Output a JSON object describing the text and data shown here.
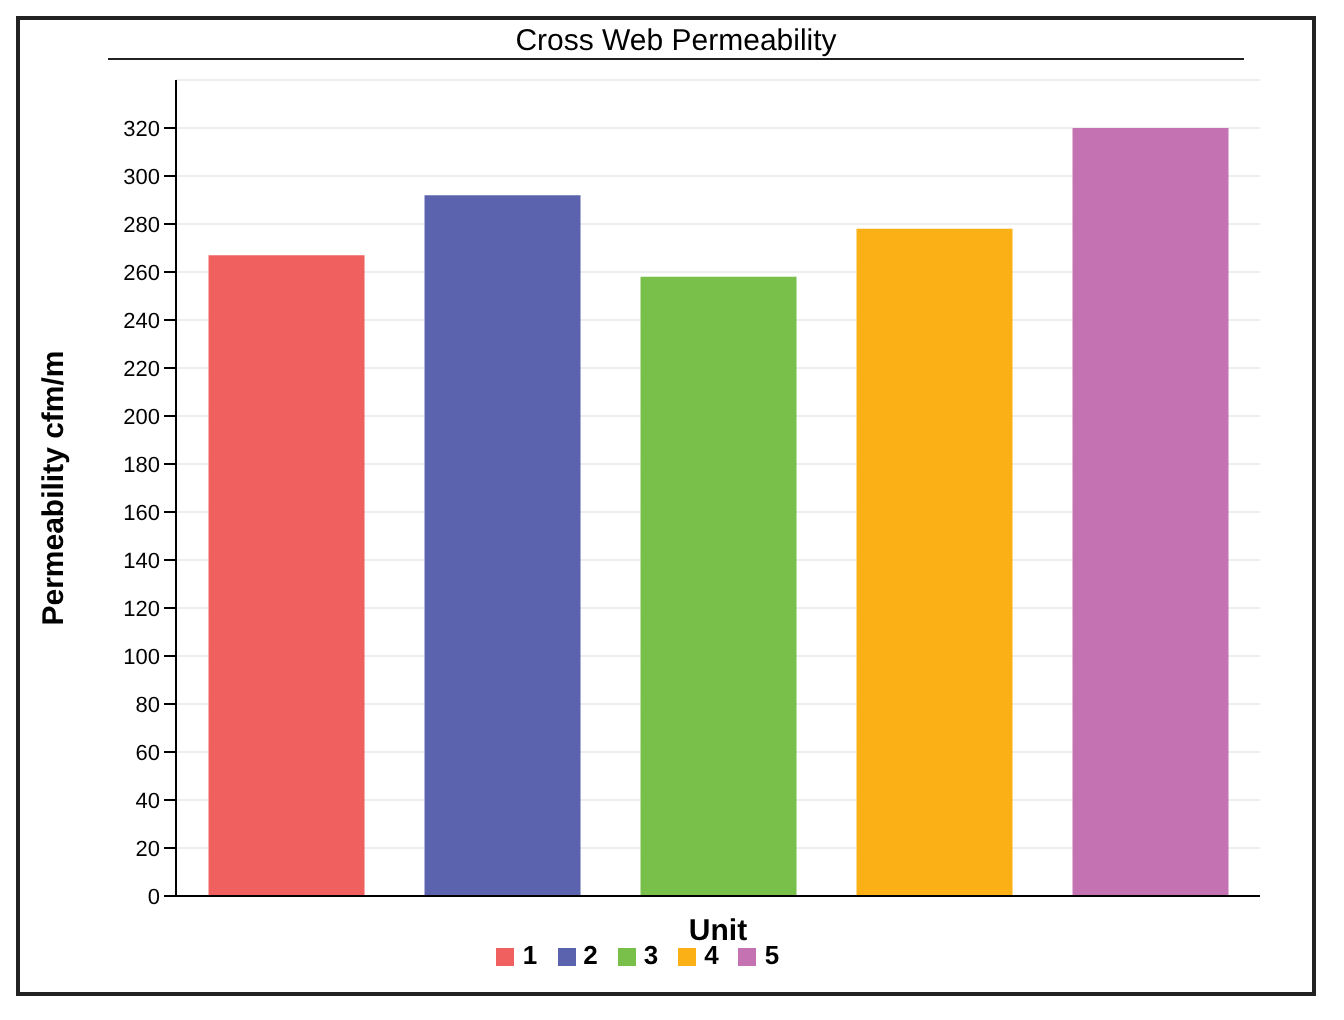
{
  "chart_data": {
    "type": "bar",
    "title": "Cross Web Permeability",
    "xlabel": "Unit",
    "ylabel": "Permeability cfm/m",
    "categories": [
      null
    ],
    "series": [
      {
        "name": "1",
        "color": "#f0605f",
        "values": [
          267
        ]
      },
      {
        "name": "2",
        "color": "#5b63ae",
        "values": [
          292
        ]
      },
      {
        "name": "3",
        "color": "#78c04a",
        "values": [
          258
        ]
      },
      {
        "name": "4",
        "color": "#fbb016",
        "values": [
          278
        ]
      },
      {
        "name": "5",
        "color": "#c572b3",
        "values": [
          320
        ]
      }
    ],
    "ylim": [
      0,
      340
    ],
    "yticks": [
      0,
      20,
      40,
      60,
      80,
      100,
      120,
      140,
      160,
      180,
      200,
      220,
      240,
      260,
      280,
      300,
      320
    ],
    "grid": "y",
    "legend": "bottom"
  }
}
